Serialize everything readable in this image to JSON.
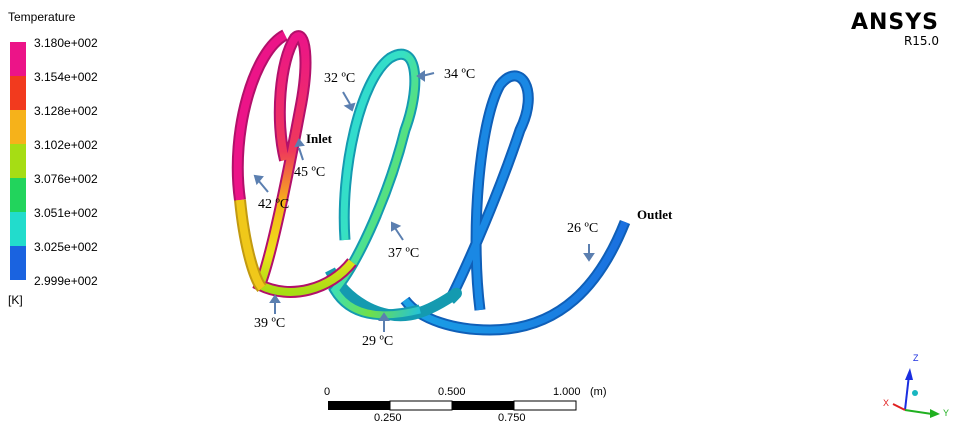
{
  "legend": {
    "title": "Temperature",
    "values": [
      "3.180e+002",
      "3.154e+002",
      "3.128e+002",
      "3.102e+002",
      "3.076e+002",
      "3.051e+002",
      "3.025e+002",
      "2.999e+002"
    ],
    "colors": [
      "#ec1488",
      "#f23a1e",
      "#f6b21a",
      "#a6dd14",
      "#22d45c",
      "#22dccc",
      "#17a0e8",
      "#1a63e0"
    ],
    "unit": "[K]"
  },
  "brand": {
    "name": "ANSYS",
    "version": "R15.0"
  },
  "annotations": {
    "inlet": "Inlet",
    "outlet": "Outlet",
    "t45": "45 ºC",
    "t42": "42 ºC",
    "t39": "39 ºC",
    "t32": "32 ºC",
    "t34": "34 ºC",
    "t37": "37 ºC",
    "t29": "29 ºC",
    "t26": "26 ºC"
  },
  "scale": {
    "top_labels": [
      "0",
      "0.500",
      "1.000"
    ],
    "unit": "(m)",
    "bottom_labels": [
      "0.250",
      "0.750"
    ]
  },
  "axes": {
    "z": "Z",
    "x": "X",
    "y": "Y"
  }
}
